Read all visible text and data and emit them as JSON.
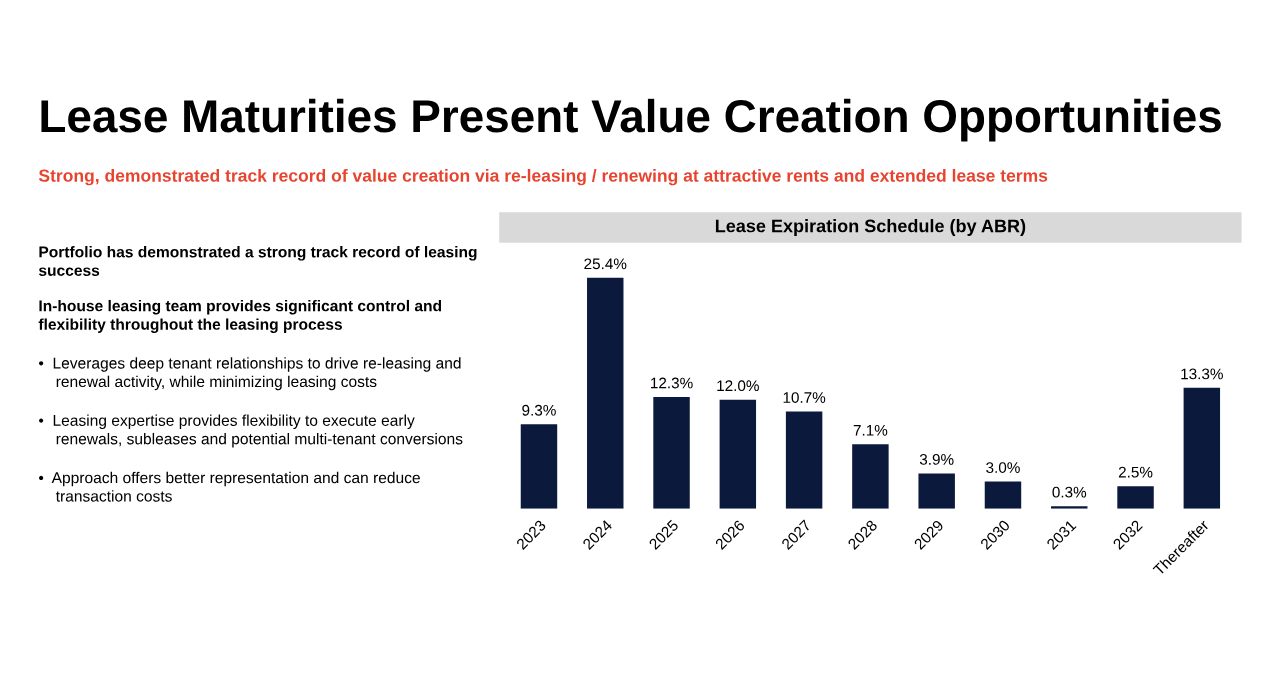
{
  "chart_data": [
    {
      "type": "other",
      "title": "Lease Maturities Present Value Creation Opportunities",
      "subtitle": "Strong, demonstrated track record of value creation via re-leasing / renewing at attractive rents and extended lease terms",
      "annotations": [
        "Portfolio has demonstrated a strong track record of leasing\nsuccess",
        "In-house leasing team provides significant control and\nflexibility throughout the leasing process",
        "•  Leverages deep tenant relationships to drive re-leasing and\n    renewal activity, while minimizing leasing costs",
        "•  Leasing expertise provides flexibility to execute early\n    renewals, subleases and potential multi-tenant conversions",
        "•  Approach offers better representation and can reduce\n    transaction costs"
      ]
    },
    {
      "type": "bar",
      "title": "Lease Expiration Schedule (by ABR)",
      "categories": [
        "2023",
        "2024",
        "2025",
        "2026",
        "2027",
        "2028",
        "2029",
        "2030",
        "2031",
        "2032",
        "Thereafter"
      ],
      "values": [
        9.3,
        25.4,
        12.3,
        12.0,
        10.7,
        7.1,
        3.9,
        3.0,
        0.3,
        2.5,
        13.3
      ],
      "value_labels": [
        "9.3%",
        "25.4%",
        "12.3%",
        "12.0%",
        "10.7%",
        "7.1%",
        "3.9%",
        "3.0%",
        "0.3%",
        "2.5%",
        "13.3%"
      ],
      "color": "#0b1a3c"
    }
  ]
}
